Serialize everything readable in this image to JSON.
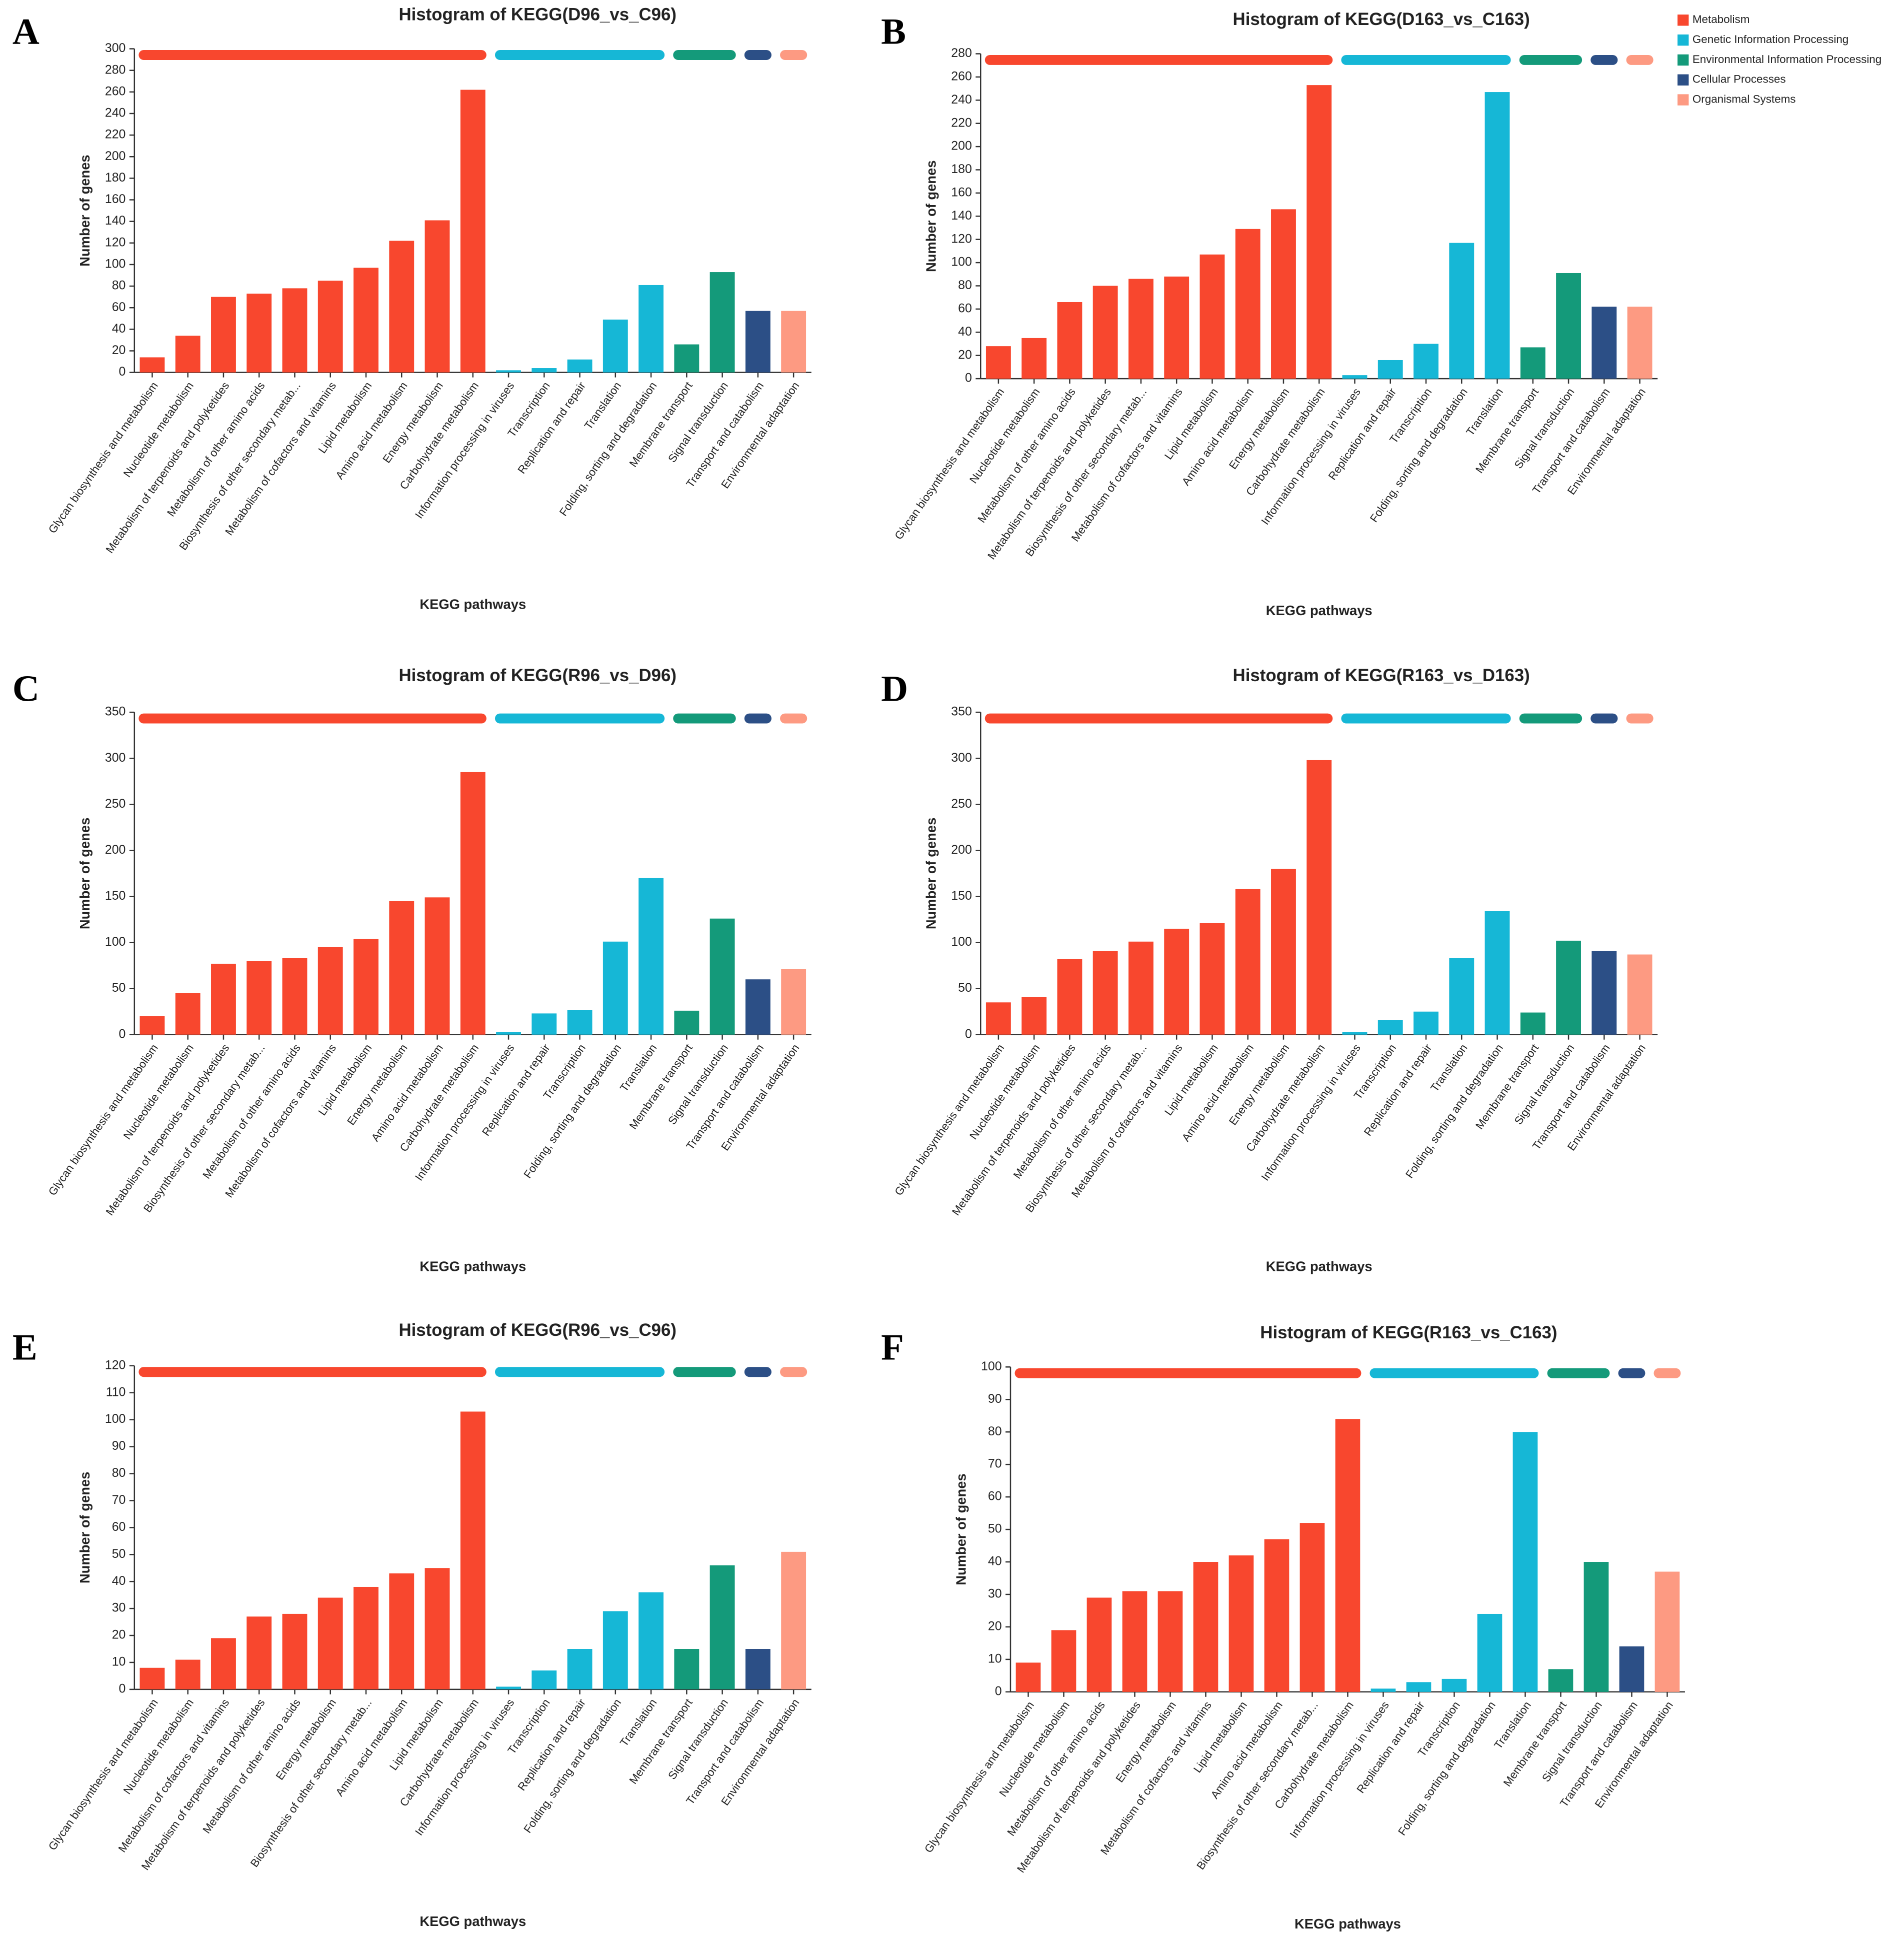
{
  "legend": [
    {
      "name": "Metabolism",
      "color": "#f8472e"
    },
    {
      "name": "Genetic Information Processing",
      "color": "#16b7d6"
    },
    {
      "name": "Environmental Information Processing",
      "color": "#149a7a"
    },
    {
      "name": "Cellular Processes",
      "color": "#2c4f86"
    },
    {
      "name": "Organismal Systems",
      "color": "#fd9a82"
    }
  ],
  "chart_data": [
    {
      "type": "bar",
      "panel": "A",
      "title": "Histogram of KEGG(D96_vs_C96)",
      "x_label": "KEGG pathways",
      "y_label": "Number of genes",
      "categories": [
        "Glycan biosynthesis and metabolism",
        "Nucleotide metabolism",
        "Metabolism of terpenoids and polyketides",
        "Metabolism of other amino acids",
        "Biosynthesis of other secondary metab...",
        "Metabolism of cofactors and vitamins",
        "Lipid metabolism",
        "Amino acid metabolism",
        "Energy metabolism",
        "Carbohydrate metabolism",
        "Information processing in viruses",
        "Transcription",
        "Replication and repair",
        "Translation",
        "Folding, sorting and degradation",
        "Membrane transport",
        "Signal transduction",
        "Transport and catabolism",
        "Environmental adaptation"
      ],
      "values": [
        14,
        34,
        70,
        73,
        78,
        85,
        97,
        122,
        141,
        262,
        2,
        4,
        12,
        49,
        81,
        26,
        93,
        57,
        57
      ],
      "colors": [
        "#f8472e",
        "#f8472e",
        "#f8472e",
        "#f8472e",
        "#f8472e",
        "#f8472e",
        "#f8472e",
        "#f8472e",
        "#f8472e",
        "#f8472e",
        "#16b7d6",
        "#16b7d6",
        "#16b7d6",
        "#16b7d6",
        "#16b7d6",
        "#149a7a",
        "#149a7a",
        "#2c4f86",
        "#fd9a82"
      ],
      "ylim": [
        0,
        300
      ],
      "yticks": [
        0,
        20,
        40,
        60,
        80,
        100,
        120,
        140,
        160,
        180,
        200,
        220,
        240,
        260,
        280,
        300
      ]
    },
    {
      "type": "bar",
      "panel": "B",
      "title": "Histogram of KEGG(D163_vs_C163)",
      "x_label": "KEGG pathways",
      "y_label": "Number of genes",
      "categories": [
        "Glycan biosynthesis and metabolism",
        "Nucleotide metabolism",
        "Metabolism of other amino acids",
        "Metabolism of terpenoids and polyketides",
        "Biosynthesis of other secondary metab...",
        "Metabolism of cofactors and vitamins",
        "Lipid metabolism",
        "Amino acid metabolism",
        "Energy metabolism",
        "Carbohydrate metabolism",
        "Information processing in viruses",
        "Replication and repair",
        "Transcription",
        "Folding, sorting and degradation",
        "Translation",
        "Membrane transport",
        "Signal transduction",
        "Transport and catabolism",
        "Environmental adaptation"
      ],
      "values": [
        28,
        35,
        66,
        80,
        86,
        88,
        107,
        129,
        146,
        253,
        3,
        16,
        30,
        117,
        247,
        27,
        91,
        62,
        62
      ],
      "colors": [
        "#f8472e",
        "#f8472e",
        "#f8472e",
        "#f8472e",
        "#f8472e",
        "#f8472e",
        "#f8472e",
        "#f8472e",
        "#f8472e",
        "#f8472e",
        "#16b7d6",
        "#16b7d6",
        "#16b7d6",
        "#16b7d6",
        "#16b7d6",
        "#149a7a",
        "#149a7a",
        "#2c4f86",
        "#fd9a82"
      ],
      "ylim": [
        0,
        280
      ],
      "yticks": [
        0,
        20,
        40,
        60,
        80,
        100,
        120,
        140,
        160,
        180,
        200,
        220,
        240,
        260,
        280
      ]
    },
    {
      "type": "bar",
      "panel": "C",
      "title": "Histogram of KEGG(R96_vs_D96)",
      "x_label": "KEGG pathways",
      "y_label": "Number of genes",
      "categories": [
        "Glycan biosynthesis and metabolism",
        "Nucleotide metabolism",
        "Metabolism of terpenoids and polyketides",
        "Biosynthesis of other secondary metab...",
        "Metabolism of other amino acids",
        "Metabolism of cofactors and vitamins",
        "Lipid metabolism",
        "Energy metabolism",
        "Amino acid metabolism",
        "Carbohydrate metabolism",
        "Information processing in viruses",
        "Replication and repair",
        "Transcription",
        "Folding, sorting and degradation",
        "Translation",
        "Membrane transport",
        "Signal transduction",
        "Transport and catabolism",
        "Environmental adaptation"
      ],
      "values": [
        20,
        45,
        77,
        80,
        83,
        95,
        104,
        145,
        149,
        285,
        3,
        23,
        27,
        101,
        170,
        26,
        126,
        60,
        71
      ],
      "colors": [
        "#f8472e",
        "#f8472e",
        "#f8472e",
        "#f8472e",
        "#f8472e",
        "#f8472e",
        "#f8472e",
        "#f8472e",
        "#f8472e",
        "#f8472e",
        "#16b7d6",
        "#16b7d6",
        "#16b7d6",
        "#16b7d6",
        "#16b7d6",
        "#149a7a",
        "#149a7a",
        "#2c4f86",
        "#fd9a82"
      ],
      "ylim": [
        0,
        350
      ],
      "yticks": [
        0,
        50,
        100,
        150,
        200,
        250,
        300,
        350
      ]
    },
    {
      "type": "bar",
      "panel": "D",
      "title": "Histogram of KEGG(R163_vs_D163)",
      "x_label": "KEGG pathways",
      "y_label": "Number of genes",
      "categories": [
        "Glycan biosynthesis and metabolism",
        "Nucleotide metabolism",
        "Metabolism of terpenoids and polyketides",
        "Metabolism of other amino acids",
        "Biosynthesis of other secondary metab...",
        "Metabolism of cofactors and vitamins",
        "Lipid metabolism",
        "Amino acid metabolism",
        "Energy metabolism",
        "Carbohydrate metabolism",
        "Information processing in viruses",
        "Transcription",
        "Replication and repair",
        "Translation",
        "Folding, sorting and degradation",
        "Membrane transport",
        "Signal transduction",
        "Transport and catabolism",
        "Environmental adaptation"
      ],
      "values": [
        35,
        41,
        82,
        91,
        101,
        115,
        121,
        158,
        180,
        298,
        3,
        16,
        25,
        83,
        134,
        24,
        102,
        91,
        87
      ],
      "colors": [
        "#f8472e",
        "#f8472e",
        "#f8472e",
        "#f8472e",
        "#f8472e",
        "#f8472e",
        "#f8472e",
        "#f8472e",
        "#f8472e",
        "#f8472e",
        "#16b7d6",
        "#16b7d6",
        "#16b7d6",
        "#16b7d6",
        "#16b7d6",
        "#149a7a",
        "#149a7a",
        "#2c4f86",
        "#fd9a82"
      ],
      "ylim": [
        0,
        350
      ],
      "yticks": [
        0,
        50,
        100,
        150,
        200,
        250,
        300,
        350
      ]
    },
    {
      "type": "bar",
      "panel": "E",
      "title": "Histogram of KEGG(R96_vs_C96)",
      "x_label": "KEGG pathways",
      "y_label": "Number of genes",
      "categories": [
        "Glycan biosynthesis and metabolism",
        "Nucleotide metabolism",
        "Metabolism of cofactors and vitamins",
        "Metabolism of terpenoids and polyketides",
        "Metabolism of other amino acids",
        "Energy metabolism",
        "Biosynthesis of other secondary metab...",
        "Amino acid metabolism",
        "Lipid metabolism",
        "Carbohydrate metabolism",
        "Information processing in viruses",
        "Transcription",
        "Replication and repair",
        "Folding, sorting and degradation",
        "Translation",
        "Membrane transport",
        "Signal transduction",
        "Transport and catabolism",
        "Environmental adaptation"
      ],
      "values": [
        8,
        11,
        19,
        27,
        28,
        34,
        38,
        43,
        45,
        103,
        1,
        7,
        15,
        29,
        36,
        15,
        46,
        15,
        51
      ],
      "colors": [
        "#f8472e",
        "#f8472e",
        "#f8472e",
        "#f8472e",
        "#f8472e",
        "#f8472e",
        "#f8472e",
        "#f8472e",
        "#f8472e",
        "#f8472e",
        "#16b7d6",
        "#16b7d6",
        "#16b7d6",
        "#16b7d6",
        "#16b7d6",
        "#149a7a",
        "#149a7a",
        "#2c4f86",
        "#fd9a82"
      ],
      "ylim": [
        0,
        120
      ],
      "yticks": [
        0,
        10,
        20,
        30,
        40,
        50,
        60,
        70,
        80,
        90,
        100,
        110,
        120
      ]
    },
    {
      "type": "bar",
      "panel": "F",
      "title": "Histogram of KEGG(R163_vs_C163)",
      "x_label": "KEGG pathways",
      "y_label": "Number of genes",
      "categories": [
        "Glycan biosynthesis and metabolism",
        "Nucleotide metabolism",
        "Metabolism of other amino acids",
        "Metabolism of terpenoids and polyketides",
        "Energy metabolism",
        "Metabolism of cofactors and vitamins",
        "Lipid metabolism",
        "Amino acid metabolism",
        "Biosynthesis of other secondary metab...",
        "Carbohydrate metabolism",
        "Information processing in viruses",
        "Replication and repair",
        "Transcription",
        "Folding, sorting and degradation",
        "Translation",
        "Membrane transport",
        "Signal transduction",
        "Transport and catabolism",
        "Environmental adaptation"
      ],
      "values": [
        9,
        19,
        29,
        31,
        31,
        40,
        42,
        47,
        52,
        84,
        1,
        3,
        4,
        24,
        80,
        7,
        40,
        14,
        37
      ],
      "colors": [
        "#f8472e",
        "#f8472e",
        "#f8472e",
        "#f8472e",
        "#f8472e",
        "#f8472e",
        "#f8472e",
        "#f8472e",
        "#f8472e",
        "#f8472e",
        "#16b7d6",
        "#16b7d6",
        "#16b7d6",
        "#16b7d6",
        "#16b7d6",
        "#149a7a",
        "#149a7a",
        "#2c4f86",
        "#fd9a82"
      ],
      "ylim": [
        0,
        100
      ],
      "yticks": [
        0,
        10,
        20,
        30,
        40,
        50,
        60,
        70,
        80,
        90,
        100
      ]
    }
  ]
}
